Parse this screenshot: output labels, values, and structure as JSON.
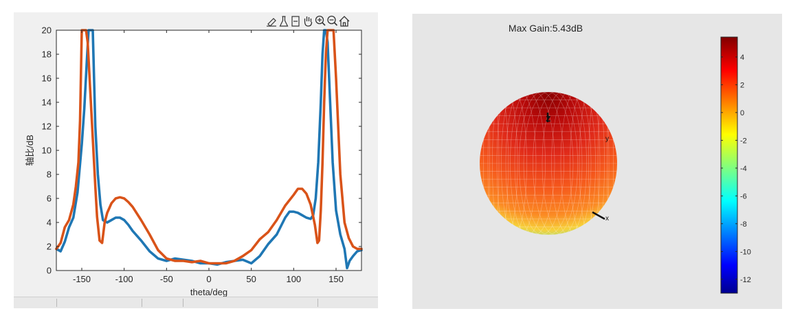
{
  "toolbar": {
    "icons": [
      "brush-icon",
      "flask-icon",
      "data-cursor-icon",
      "pan-hand-icon",
      "zoom-in-icon",
      "zoom-out-icon",
      "home-icon"
    ]
  },
  "chart_data": [
    {
      "type": "line",
      "title": "",
      "xlabel": "theta/deg",
      "ylabel": "轴比/dB",
      "xlim": [
        -180,
        180
      ],
      "ylim": [
        0,
        20
      ],
      "xticks": [
        -150,
        -100,
        -50,
        0,
        50,
        100,
        150
      ],
      "yticks": [
        0,
        2,
        4,
        6,
        8,
        10,
        12,
        14,
        16,
        18,
        20
      ],
      "grid": false,
      "series": [
        {
          "color": "#1f77b4",
          "x": [
            -180,
            -175,
            -170,
            -165,
            -160,
            -155,
            -150,
            -147,
            -144,
            -142,
            -139,
            -137,
            -134,
            -131,
            -128,
            -125,
            -120,
            -115,
            -110,
            -105,
            -100,
            -95,
            -90,
            -80,
            -70,
            -60,
            -50,
            -40,
            -30,
            -20,
            -10,
            0,
            10,
            20,
            30,
            40,
            50,
            60,
            70,
            80,
            90,
            95,
            100,
            105,
            110,
            115,
            120,
            123,
            126,
            129,
            132,
            134,
            136,
            138,
            140,
            143,
            146,
            150,
            155,
            160,
            163,
            166,
            170,
            175,
            180
          ],
          "y": [
            1.8,
            1.6,
            2.4,
            3.6,
            4.4,
            6.5,
            10.5,
            13.5,
            17.5,
            20,
            20,
            20,
            12,
            8.0,
            5.5,
            4.2,
            4.0,
            4.2,
            4.4,
            4.4,
            4.2,
            3.8,
            3.3,
            2.5,
            1.6,
            1.0,
            0.8,
            1.0,
            0.9,
            0.8,
            0.6,
            0.6,
            0.5,
            0.7,
            0.8,
            0.9,
            0.6,
            1.2,
            2.2,
            3.0,
            4.4,
            4.9,
            4.9,
            4.8,
            4.6,
            4.4,
            4.3,
            4.6,
            6.0,
            9.0,
            14.0,
            18.0,
            20,
            20,
            19.0,
            14.0,
            9.0,
            5.0,
            3.0,
            1.8,
            0.2,
            0.8,
            1.2,
            1.6,
            1.7
          ]
        },
        {
          "color": "#d95319",
          "x": [
            -180,
            -175,
            -170,
            -165,
            -160,
            -157,
            -154,
            -152,
            -150,
            -148,
            -145,
            -143,
            -140,
            -137,
            -134,
            -132,
            -129,
            -126,
            -123,
            -120,
            -115,
            -110,
            -105,
            -100,
            -95,
            -90,
            -80,
            -70,
            -60,
            -50,
            -40,
            -30,
            -20,
            -10,
            0,
            10,
            20,
            30,
            40,
            50,
            60,
            70,
            80,
            90,
            100,
            105,
            110,
            115,
            120,
            125,
            128,
            130,
            132,
            134,
            136,
            138,
            140,
            142,
            144,
            147,
            150,
            155,
            160,
            165,
            170,
            175,
            180
          ],
          "y": [
            1.8,
            2.3,
            3.6,
            4.2,
            5.5,
            7.0,
            9.0,
            12.5,
            20,
            20,
            20,
            19.0,
            15.0,
            11.0,
            7.0,
            4.5,
            2.5,
            2.3,
            4.0,
            4.8,
            5.6,
            6.0,
            6.1,
            6.0,
            5.7,
            5.3,
            4.2,
            3.0,
            1.7,
            1.0,
            0.8,
            0.8,
            0.7,
            0.8,
            0.6,
            0.6,
            0.6,
            0.8,
            1.2,
            1.7,
            2.6,
            3.2,
            4.2,
            5.4,
            6.3,
            6.8,
            6.8,
            6.4,
            5.5,
            3.8,
            2.3,
            2.5,
            5.0,
            9.0,
            14.0,
            18.0,
            20,
            20,
            20,
            20,
            16.0,
            8.0,
            4.0,
            2.7,
            2.0,
            1.8,
            1.8
          ]
        }
      ]
    },
    {
      "type": "heatmap",
      "title": "Max Gain:5.43dB",
      "xlabel": "",
      "ylabel": "",
      "axis_labels": [
        "z",
        "y",
        "x"
      ],
      "colorbar": {
        "min": -13,
        "max": 5.43,
        "ticks": [
          4,
          2,
          0,
          -2,
          -4,
          -6,
          -8,
          -10,
          -12
        ],
        "colormap": "jet"
      }
    }
  ]
}
